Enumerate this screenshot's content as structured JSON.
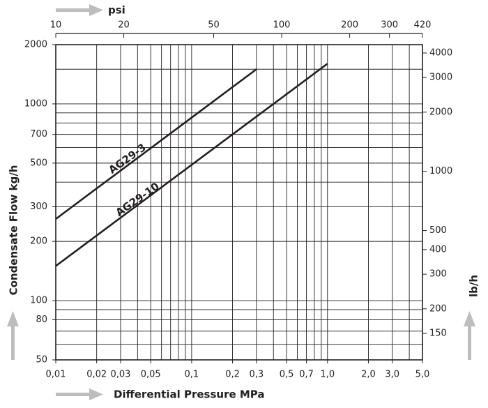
{
  "chart_data": {
    "type": "line",
    "x_title": "Differential Pressure MPa",
    "y_title": "Condensate Flow kg/h",
    "x2_title": "psi",
    "y2_title": "lb/h",
    "log_x": true,
    "log_y": true,
    "xlim": [
      0.01,
      5.0
    ],
    "ylim": [
      50,
      2000
    ],
    "x2lim": [
      10,
      420
    ],
    "y2lim": [
      110,
      4410
    ],
    "xticks": [
      {
        "value": 0.01,
        "label": "0,01"
      },
      {
        "value": 0.02,
        "label": "0,02"
      },
      {
        "value": 0.03,
        "label": "0,03"
      },
      {
        "value": 0.05,
        "label": "0,05"
      },
      {
        "value": 0.1,
        "label": "0,1"
      },
      {
        "value": 0.2,
        "label": "0,2"
      },
      {
        "value": 0.3,
        "label": "0,3"
      },
      {
        "value": 0.5,
        "label": "0,5"
      },
      {
        "value": 0.7,
        "label": "0,7"
      },
      {
        "value": 1.0,
        "label": "1,0"
      },
      {
        "value": 2.0,
        "label": "2,0"
      },
      {
        "value": 3.0,
        "label": "3,0"
      },
      {
        "value": 5.0,
        "label": "5,0"
      }
    ],
    "yticks": [
      50,
      80,
      100,
      200,
      300,
      500,
      700,
      1000,
      2000
    ],
    "x2ticks": [
      10,
      20,
      50,
      100,
      200,
      300,
      420
    ],
    "y2ticks": [
      150,
      200,
      300,
      400,
      500,
      1000,
      2000,
      3000,
      4000
    ],
    "xgrid": [
      0.02,
      0.03,
      0.04,
      0.05,
      0.06,
      0.07,
      0.08,
      0.09,
      0.1,
      0.2,
      0.3,
      0.4,
      0.5,
      0.6,
      0.7,
      0.8,
      0.9,
      1.0,
      2.0,
      3.0,
      4.0
    ],
    "ygrid": [
      60,
      70,
      80,
      90,
      100,
      200,
      300,
      400,
      500,
      600,
      700,
      800,
      900,
      1000,
      1500
    ],
    "color": "#231f20",
    "series": [
      {
        "name": "AG29-3",
        "x": [
          0.01,
          0.3
        ],
        "values": [
          260,
          1500
        ]
      },
      {
        "name": "AG29-10",
        "x": [
          0.01,
          1.0
        ],
        "values": [
          150,
          1600
        ]
      }
    ]
  }
}
